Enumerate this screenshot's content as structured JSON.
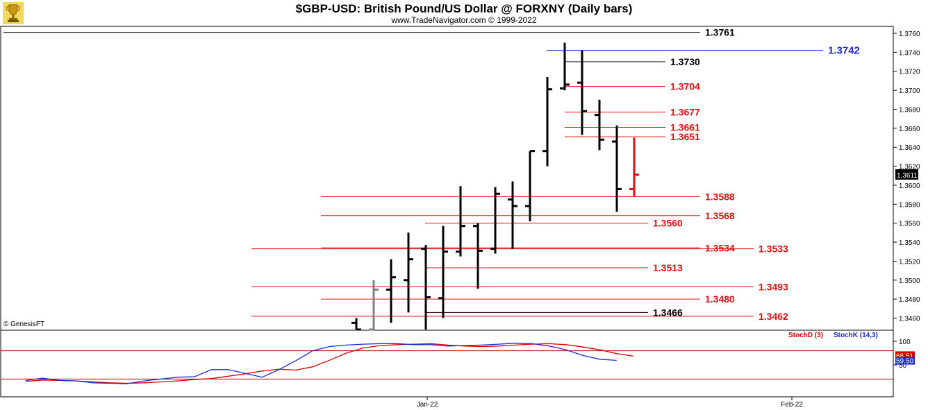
{
  "header": {
    "title": "$GBP-USD:  British Pound/US Dollar @ FORXNY  (Daily bars)",
    "subtitle": "www.TradeNavigator.com © 1999-2022"
  },
  "watermark": "© GenesisFT",
  "colors": {
    "bar_up": "#000000",
    "bar_gray": "#808080",
    "bar_current": "#e01010",
    "level_red": "#e01010",
    "level_black": "#000000",
    "level_blue": "#1a2bd0",
    "stoch_d": "#d40000",
    "stoch_k": "#1a2bd0"
  },
  "chart_data": [
    {
      "type": "ohlc",
      "title": "$GBP-USD:  British Pound/US Dollar @ FORXNY  (Daily bars)",
      "ylim": [
        1.3445,
        1.3773
      ],
      "y_ticks": [
        "1.3760",
        "1.3740",
        "1.3720",
        "1.3700",
        "1.3680",
        "1.3660",
        "1.3640",
        "1.3620",
        "1.3600",
        "1.3580",
        "1.3560",
        "1.3540",
        "1.3520",
        "1.3500",
        "1.3480",
        "1.3460"
      ],
      "x_tick_labels": [
        "Jan-22",
        "Feb-22"
      ],
      "current_price_label": "1.3611",
      "bars": [
        {
          "high": 1.346,
          "low": 1.3445,
          "open": 1.3455,
          "close": 1.3448,
          "color": "black"
        },
        {
          "high": 1.35,
          "low": 1.3445,
          "open": 1.3448,
          "close": 1.349,
          "color": "gray"
        },
        {
          "high": 1.3522,
          "low": 1.3455,
          "open": 1.349,
          "close": 1.3503,
          "color": "black"
        },
        {
          "high": 1.355,
          "low": 1.3466,
          "open": 1.35,
          "close": 1.3522,
          "color": "black"
        },
        {
          "high": 1.3537,
          "low": 1.3448,
          "open": 1.3533,
          "close": 1.3482,
          "color": "black"
        },
        {
          "high": 1.3557,
          "low": 1.346,
          "open": 1.3481,
          "close": 1.353,
          "color": "black"
        },
        {
          "high": 1.3599,
          "low": 1.3525,
          "open": 1.353,
          "close": 1.3557,
          "color": "black"
        },
        {
          "high": 1.356,
          "low": 1.3491,
          "open": 1.3557,
          "close": 1.3531,
          "color": "black"
        },
        {
          "high": 1.3598,
          "low": 1.3528,
          "open": 1.3533,
          "close": 1.3591,
          "color": "black"
        },
        {
          "high": 1.3604,
          "low": 1.3533,
          "open": 1.3585,
          "close": 1.3578,
          "color": "black"
        },
        {
          "high": 1.3636,
          "low": 1.3562,
          "open": 1.3578,
          "close": 1.3636,
          "color": "black"
        },
        {
          "high": 1.3714,
          "low": 1.362,
          "open": 1.3636,
          "close": 1.3701,
          "color": "black"
        },
        {
          "high": 1.375,
          "low": 1.37,
          "open": 1.3702,
          "close": 1.3706,
          "color": "black"
        },
        {
          "high": 1.3742,
          "low": 1.3653,
          "open": 1.3708,
          "close": 1.3678,
          "color": "black"
        },
        {
          "high": 1.369,
          "low": 1.3637,
          "open": 1.3674,
          "close": 1.3648,
          "color": "black"
        },
        {
          "high": 1.3663,
          "low": 1.3572,
          "open": 1.3646,
          "close": 1.3596,
          "color": "black"
        },
        {
          "high": 1.365,
          "low": 1.3588,
          "open": 1.3596,
          "close": 1.3611,
          "color": "red"
        }
      ],
      "levels": [
        {
          "value": 1.3761,
          "label": "1.3761",
          "color": "black",
          "span": "wide"
        },
        {
          "value": 1.3742,
          "label": "1.3742",
          "color": "blue",
          "span": "wide"
        },
        {
          "value": 1.373,
          "label": "1.3730",
          "color": "black",
          "span": "short"
        },
        {
          "value": 1.3704,
          "label": "1.3704",
          "color": "red",
          "span": "short"
        },
        {
          "value": 1.3677,
          "label": "1.3677",
          "color": "red",
          "span": "short"
        },
        {
          "value": 1.3661,
          "label": "1.3661",
          "color": "red",
          "span": "short"
        },
        {
          "value": 1.3651,
          "label": "1.3651",
          "color": "red",
          "span": "short"
        },
        {
          "value": 1.3588,
          "label": "1.3588",
          "color": "red",
          "span": "mid"
        },
        {
          "value": 1.3568,
          "label": "1.3568",
          "color": "red",
          "span": "mid"
        },
        {
          "value": 1.356,
          "label": "1.3560",
          "color": "red",
          "span": "short"
        },
        {
          "value": 1.3534,
          "label": "1.3534",
          "color": "red",
          "span": "mid"
        },
        {
          "value": 1.3533,
          "label": "1.3533",
          "color": "red",
          "span": "long"
        },
        {
          "value": 1.3513,
          "label": "1.3513",
          "color": "red",
          "span": "short"
        },
        {
          "value": 1.3493,
          "label": "1.3493",
          "color": "red",
          "span": "long"
        },
        {
          "value": 1.348,
          "label": "1.3480",
          "color": "red",
          "span": "mid"
        },
        {
          "value": 1.3466,
          "label": "1.3466",
          "color": "black",
          "span": "short"
        },
        {
          "value": 1.3462,
          "label": "1.3462",
          "color": "red",
          "span": "long"
        }
      ]
    },
    {
      "type": "line",
      "title": "",
      "ylim": [
        0,
        100
      ],
      "y_ticks": [
        "100",
        "50"
      ],
      "reference_lines": [
        80,
        20
      ],
      "value_labels": [
        "68.51",
        "59.50"
      ],
      "series": [
        {
          "name": "StochD (3)",
          "color": "#d40000",
          "values": [
            15,
            18,
            17,
            16,
            14,
            12,
            11,
            12,
            14,
            16,
            19,
            21,
            26,
            31,
            37,
            41,
            39,
            46,
            60,
            75,
            86,
            91,
            93,
            94,
            95,
            92,
            90,
            89,
            90,
            92,
            94,
            95,
            93,
            88,
            82,
            74,
            68.5
          ]
        },
        {
          "name": "StochK (14,3)",
          "color": "#1a2bd0",
          "values": [
            17,
            22,
            17,
            16,
            12,
            11,
            10,
            16,
            20,
            24,
            25,
            40,
            40,
            32,
            24,
            40,
            59,
            80,
            89,
            92,
            94,
            95,
            95,
            93,
            93,
            90,
            91,
            92,
            94,
            96,
            95,
            90,
            82,
            70,
            62,
            59.5
          ]
        }
      ]
    }
  ]
}
